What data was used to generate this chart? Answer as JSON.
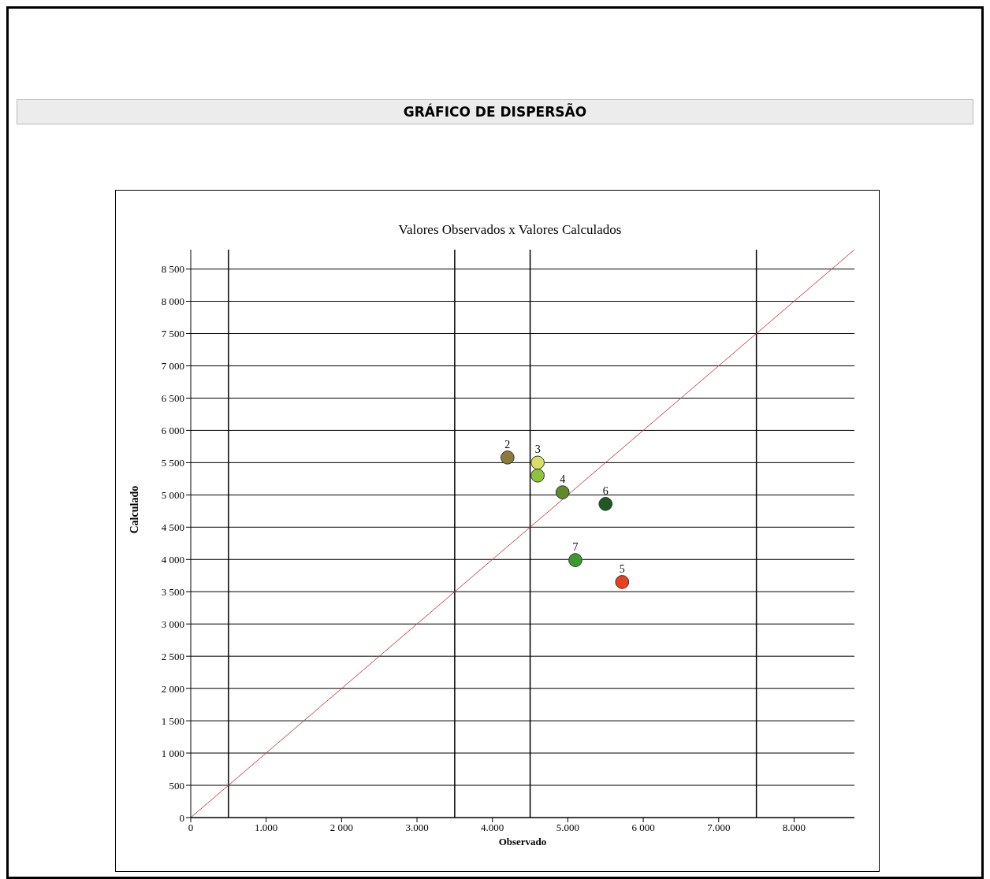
{
  "chart_data": {
    "type": "scatter",
    "title": "GRÁFICO DE DISPERSÃO",
    "subtitle": "Valores Observados x Valores Calculados",
    "xlabel": "Observado",
    "ylabel": "Calculado",
    "xlim": [
      0,
      8800
    ],
    "ylim": [
      0,
      8800
    ],
    "xticks": [
      0,
      {
        "value": 1000,
        "label": "1.000"
      },
      {
        "value": 2000,
        "label": "2 000"
      },
      {
        "value": 3000,
        "label": "3.000"
      },
      {
        "value": 4000,
        "label": "4.000"
      },
      {
        "value": 5000,
        "label": "5.000"
      },
      {
        "value": 6000,
        "label": "6 000"
      },
      {
        "value": 7000,
        "label": "7.000"
      },
      {
        "value": 8000,
        "label": "8.000"
      }
    ],
    "yticks": [
      0,
      500,
      {
        "value": 1000,
        "label": "1 000"
      },
      {
        "value": 1500,
        "label": "1 500"
      },
      {
        "value": 2000,
        "label": "2 000"
      },
      {
        "value": 2500,
        "label": "2 500"
      },
      {
        "value": 3000,
        "label": "3 000"
      },
      {
        "value": 3500,
        "label": "3 500"
      },
      {
        "value": 4000,
        "label": "4 000"
      },
      {
        "value": 4500,
        "label": "4 500"
      },
      {
        "value": 5000,
        "label": "5 000"
      },
      {
        "value": 5500,
        "label": "5 500"
      },
      {
        "value": 6000,
        "label": "6 000"
      },
      {
        "value": 6500,
        "label": "6 500"
      },
      {
        "value": 7000,
        "label": "7 000"
      },
      {
        "value": 7500,
        "label": "7 500"
      },
      {
        "value": 8000,
        "label": "8 000"
      },
      {
        "value": 8500,
        "label": "8 500"
      }
    ],
    "grid": "y",
    "legend": false,
    "marker": "circle",
    "series": [
      {
        "x": [
          4600,
          4200,
          4600,
          4930,
          5720,
          5500,
          5100
        ],
        "values": [
          5300,
          5580,
          5500,
          5040,
          3650,
          4860,
          3990
        ],
        "colors": [
          "#8cc43c",
          "#8b7a3a",
          "#d4e066",
          "#5e8a2a",
          "#e8401c",
          "#1e5a1e",
          "#3c9a2c"
        ]
      },
      {
        "type": "line",
        "x": [
          0,
          8800
        ],
        "values": [
          0,
          8800
        ],
        "color": "#c04848",
        "line_style": "solid",
        "marker": "none"
      }
    ],
    "ref_lines": [
      {
        "axis": "x",
        "value": 500,
        "color": "#000000"
      },
      {
        "axis": "x",
        "value": 3500,
        "color": "#000000"
      },
      {
        "axis": "x",
        "value": 4500,
        "color": "#000000"
      },
      {
        "axis": "x",
        "value": 7500,
        "color": "#000000"
      }
    ],
    "annotations": [
      {
        "text": "2",
        "x": 4200,
        "y": 5580
      },
      {
        "text": "3",
        "x": 4600,
        "y": 5500
      },
      {
        "text": "4",
        "x": 4930,
        "y": 5040
      },
      {
        "text": "5",
        "x": 5720,
        "y": 3650
      },
      {
        "text": "6",
        "x": 5500,
        "y": 4860
      },
      {
        "text": "7",
        "x": 5100,
        "y": 3990
      }
    ]
  }
}
